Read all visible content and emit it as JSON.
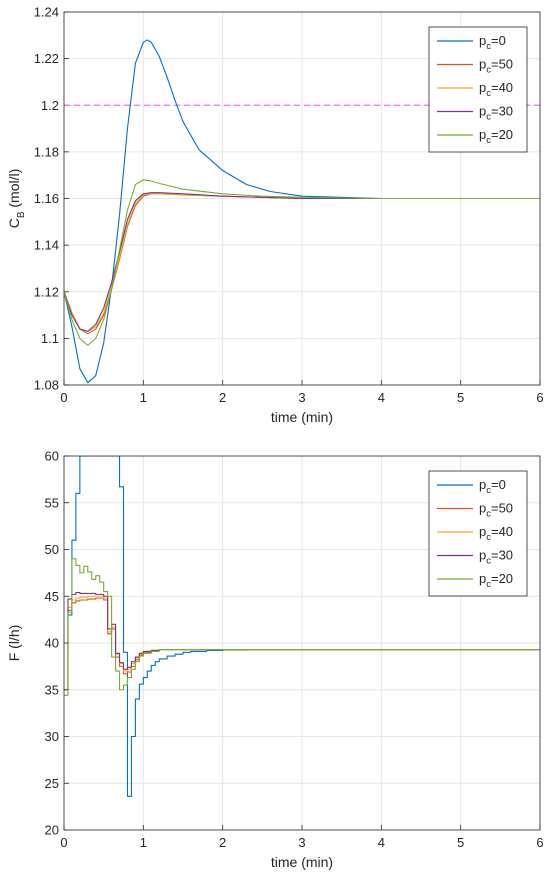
{
  "chart_data": [
    {
      "type": "line",
      "xlabel": "time (min)",
      "ylabel": "C",
      "ylabel_sub": "B",
      "ylabel_unit": " (mol/l)",
      "xlim": [
        0,
        6
      ],
      "ylim": [
        1.08,
        1.24
      ],
      "xticks": [
        "0",
        "1",
        "2",
        "3",
        "4",
        "5",
        "6"
      ],
      "yticks": [
        "1.08",
        "1.1",
        "1.12",
        "1.14",
        "1.16",
        "1.18",
        "1.2",
        "1.22",
        "1.24"
      ],
      "grid": true,
      "legend_position": "top-right",
      "reference_line": {
        "y": 1.2,
        "color": "#ff66ff",
        "style": "dashed"
      },
      "series": [
        {
          "name": "p=0",
          "label_main": "p",
          "label_sub": "c",
          "label_tail": "=0",
          "color": "#0072bd",
          "x": [
            0,
            0.1,
            0.2,
            0.3,
            0.4,
            0.5,
            0.6,
            0.7,
            0.8,
            0.9,
            1.0,
            1.05,
            1.1,
            1.2,
            1.3,
            1.4,
            1.5,
            1.7,
            2.0,
            2.3,
            2.6,
            3.0,
            3.5,
            4.0,
            5.0,
            6.0
          ],
          "y": [
            1.12,
            1.105,
            1.087,
            1.081,
            1.084,
            1.098,
            1.122,
            1.153,
            1.19,
            1.218,
            1.227,
            1.228,
            1.227,
            1.221,
            1.212,
            1.202,
            1.193,
            1.181,
            1.172,
            1.166,
            1.163,
            1.161,
            1.1605,
            1.16,
            1.16,
            1.16
          ]
        },
        {
          "name": "p=50",
          "label_main": "p",
          "label_sub": "c",
          "label_tail": "=50",
          "color": "#d95319",
          "x": [
            0,
            0.1,
            0.2,
            0.3,
            0.4,
            0.5,
            0.6,
            0.7,
            0.8,
            0.9,
            1.0,
            1.1,
            1.2,
            1.5,
            2.0,
            3.0,
            4.0,
            6.0
          ],
          "y": [
            1.12,
            1.111,
            1.104,
            1.102,
            1.104,
            1.11,
            1.121,
            1.134,
            1.148,
            1.157,
            1.161,
            1.162,
            1.162,
            1.1615,
            1.161,
            1.16,
            1.16,
            1.16
          ]
        },
        {
          "name": "p=40",
          "label_main": "p",
          "label_sub": "c",
          "label_tail": "=40",
          "color": "#edb120",
          "x": [
            0,
            0.1,
            0.2,
            0.3,
            0.4,
            0.5,
            0.6,
            0.7,
            0.8,
            0.9,
            1.0,
            1.1,
            1.2,
            1.5,
            2.0,
            3.0,
            4.0,
            6.0
          ],
          "y": [
            1.12,
            1.111,
            1.104,
            1.103,
            1.105,
            1.111,
            1.122,
            1.135,
            1.149,
            1.158,
            1.1615,
            1.162,
            1.162,
            1.1615,
            1.161,
            1.16,
            1.16,
            1.16
          ]
        },
        {
          "name": "p=30",
          "label_main": "p",
          "label_sub": "c",
          "label_tail": "=30",
          "color": "#7e2f8e",
          "x": [
            0,
            0.1,
            0.2,
            0.3,
            0.4,
            0.5,
            0.6,
            0.7,
            0.8,
            0.9,
            1.0,
            1.1,
            1.2,
            1.5,
            2.0,
            3.0,
            4.0,
            6.0
          ],
          "y": [
            1.12,
            1.11,
            1.104,
            1.103,
            1.106,
            1.113,
            1.124,
            1.137,
            1.151,
            1.159,
            1.162,
            1.1625,
            1.1625,
            1.162,
            1.161,
            1.16,
            1.16,
            1.16
          ]
        },
        {
          "name": "p=20",
          "label_main": "p",
          "label_sub": "c",
          "label_tail": "=20",
          "color": "#77ac30",
          "x": [
            0,
            0.1,
            0.2,
            0.3,
            0.4,
            0.5,
            0.6,
            0.7,
            0.8,
            0.9,
            1.0,
            1.1,
            1.2,
            1.5,
            2.0,
            2.5,
            3.0,
            4.0,
            6.0
          ],
          "y": [
            1.12,
            1.108,
            1.1,
            1.097,
            1.1,
            1.108,
            1.121,
            1.138,
            1.155,
            1.166,
            1.168,
            1.1675,
            1.1665,
            1.164,
            1.162,
            1.161,
            1.1605,
            1.16,
            1.16
          ]
        }
      ]
    },
    {
      "type": "line",
      "step": true,
      "xlabel": "time (min)",
      "ylabel": "F (l/h)",
      "xlim": [
        0,
        6
      ],
      "ylim": [
        20,
        60
      ],
      "xticks": [
        "0",
        "1",
        "2",
        "3",
        "4",
        "5",
        "6"
      ],
      "yticks": [
        "20",
        "25",
        "30",
        "35",
        "40",
        "45",
        "50",
        "55",
        "60"
      ],
      "grid": true,
      "legend_position": "top-right",
      "series": [
        {
          "name": "p=0",
          "label_main": "p",
          "label_sub": "c",
          "label_tail": "=0",
          "color": "#0072bd",
          "x": [
            0,
            0.05,
            0.1,
            0.15,
            0.2,
            0.65,
            0.7,
            0.75,
            0.8,
            0.85,
            0.9,
            0.95,
            1.0,
            1.05,
            1.1,
            1.15,
            1.2,
            1.3,
            1.4,
            1.5,
            1.6,
            1.8,
            2.0,
            2.3,
            4.6,
            5.0,
            6.0
          ],
          "y": [
            35,
            43,
            51,
            56,
            60,
            60,
            56.7,
            39,
            23.6,
            30,
            34,
            35.6,
            36.3,
            37,
            37.6,
            38,
            38.3,
            38.6,
            38.8,
            39,
            39.1,
            39.2,
            39.25,
            39.3,
            39.3,
            39.3,
            39.3
          ]
        },
        {
          "name": "p=50",
          "label_main": "p",
          "label_sub": "c",
          "label_tail": "=50",
          "color": "#d95319",
          "x": [
            0,
            0.05,
            0.1,
            0.15,
            0.2,
            0.3,
            0.4,
            0.5,
            0.55,
            0.6,
            0.65,
            0.7,
            0.75,
            0.8,
            0.85,
            0.9,
            0.95,
            1.0,
            1.1,
            1.2,
            1.3,
            6.0
          ],
          "y": [
            35,
            43.5,
            44.3,
            44.5,
            44.6,
            44.7,
            44.8,
            44.6,
            41,
            41.5,
            38.5,
            37.5,
            36.7,
            36.9,
            37.5,
            38.2,
            38.7,
            39,
            39.2,
            39.3,
            39.3,
            39.3
          ]
        },
        {
          "name": "p=40",
          "label_main": "p",
          "label_sub": "c",
          "label_tail": "=40",
          "color": "#edb120",
          "x": [
            0,
            0.05,
            0.1,
            0.15,
            0.2,
            0.3,
            0.4,
            0.5,
            0.55,
            0.6,
            0.65,
            0.7,
            0.75,
            0.8,
            0.85,
            0.9,
            0.95,
            1.0,
            1.1,
            1.2,
            6.0
          ],
          "y": [
            35,
            43.8,
            44.6,
            44.8,
            44.9,
            45,
            45,
            44.8,
            41.2,
            41.7,
            38.8,
            37.8,
            37,
            37.2,
            37.8,
            38.4,
            38.8,
            39.1,
            39.2,
            39.3,
            39.3
          ]
        },
        {
          "name": "p=30",
          "label_main": "p",
          "label_sub": "c",
          "label_tail": "=30",
          "color": "#7e2f8e",
          "x": [
            0,
            0.05,
            0.1,
            0.15,
            0.2,
            0.3,
            0.4,
            0.5,
            0.55,
            0.6,
            0.65,
            0.7,
            0.75,
            0.8,
            0.85,
            0.9,
            0.95,
            1.0,
            1.1,
            1.2,
            6.0
          ],
          "y": [
            35,
            44.7,
            45.2,
            45.4,
            45.3,
            45.3,
            45.2,
            45,
            41.5,
            42,
            38.9,
            37.9,
            37.2,
            37.4,
            38,
            38.5,
            38.9,
            39.1,
            39.2,
            39.3,
            39.3
          ]
        },
        {
          "name": "p=20",
          "label_main": "p",
          "label_sub": "c",
          "label_tail": "=20",
          "color": "#77ac30",
          "x": [
            0,
            0.05,
            0.1,
            0.15,
            0.2,
            0.25,
            0.3,
            0.35,
            0.4,
            0.45,
            0.5,
            0.55,
            0.6,
            0.65,
            0.7,
            0.75,
            0.8,
            0.85,
            0.9,
            0.95,
            1.0,
            1.1,
            1.2,
            6.0
          ],
          "y": [
            34.4,
            43.3,
            49,
            48.3,
            47.5,
            48.2,
            47.6,
            46.8,
            47.2,
            46.5,
            45.5,
            45,
            38.5,
            37,
            35,
            35.5,
            36.3,
            37.2,
            38,
            38.6,
            38.9,
            39.1,
            39.3,
            39.3
          ]
        }
      ]
    }
  ]
}
